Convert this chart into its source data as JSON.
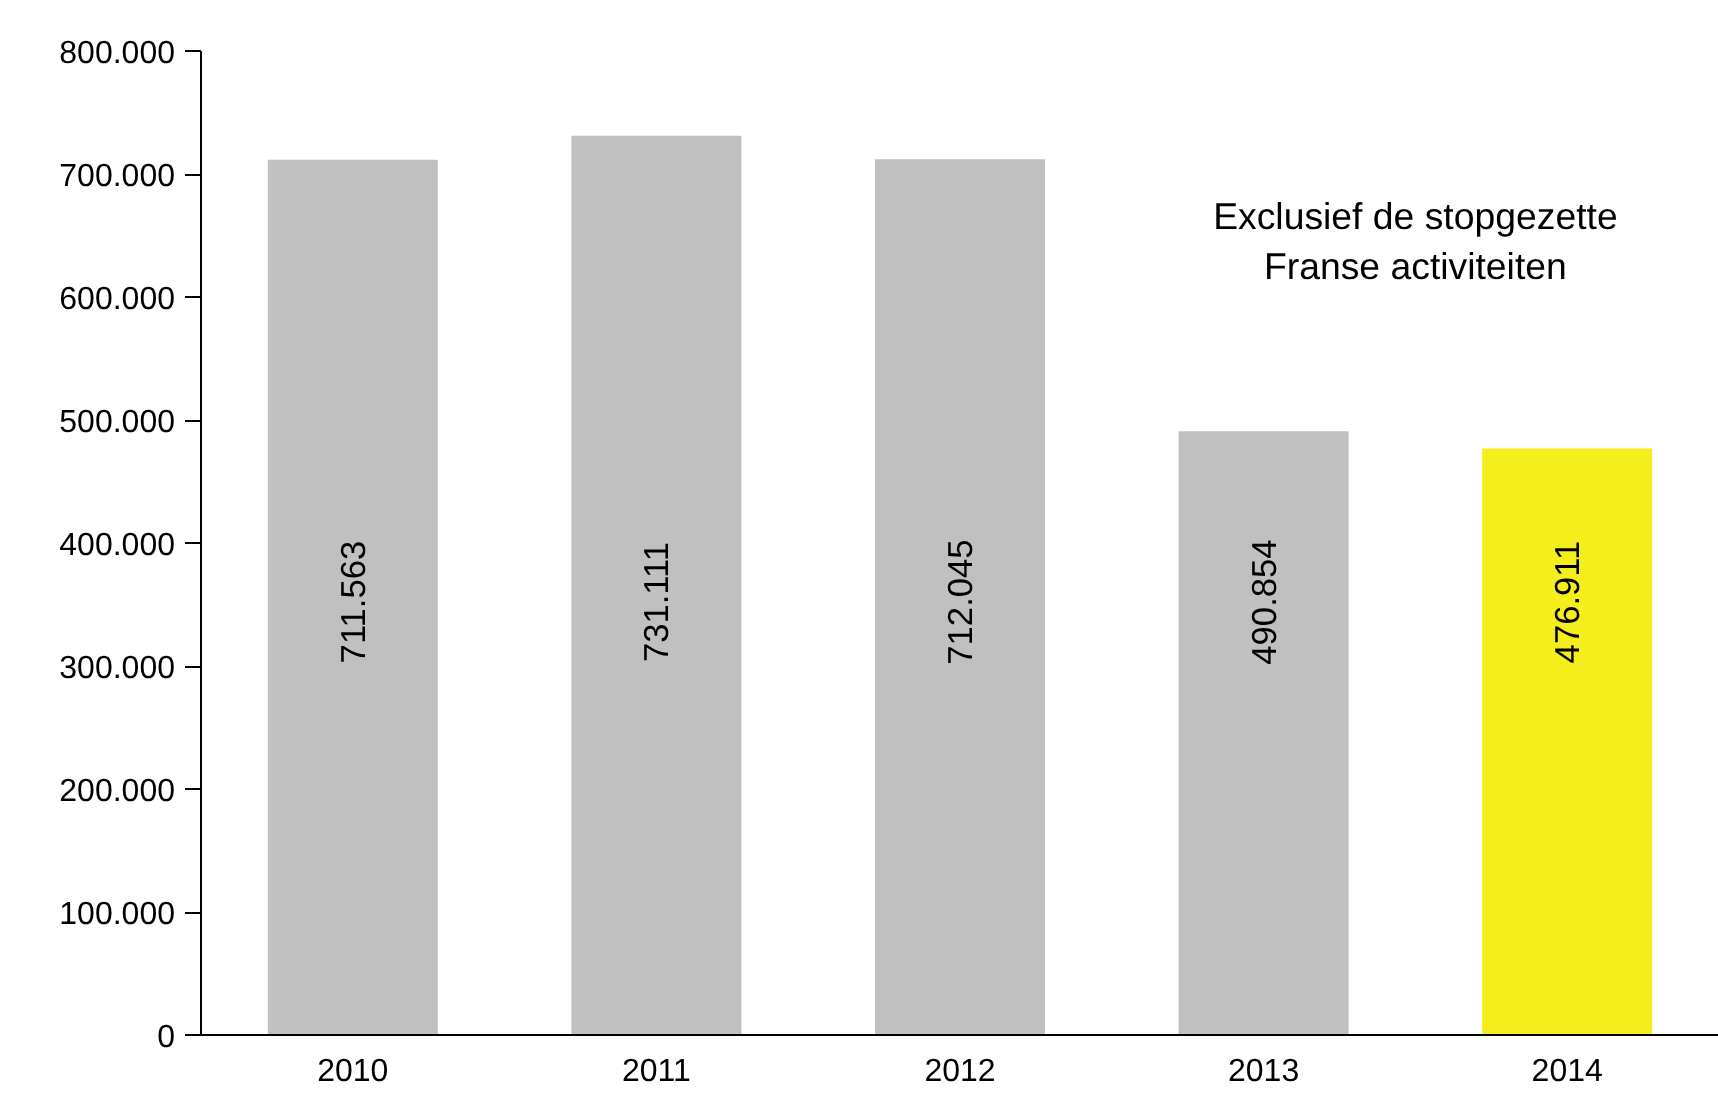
{
  "chart_data": {
    "type": "bar",
    "categories": [
      "2010",
      "2011",
      "2012",
      "2013",
      "2014"
    ],
    "values": [
      711563,
      731111,
      712045,
      490854,
      476911
    ],
    "colors": [
      "#c0c0c0",
      "#c0c0c0",
      "#c0c0c0",
      "#c0c0c0",
      "#f3ee1c"
    ],
    "value_labels": [
      "711.563",
      "731.111",
      "712.045",
      "490.854",
      "476.911"
    ],
    "ylim": [
      0,
      800000
    ],
    "yticks": [
      0,
      {
        "value": 100000,
        "label": "100.000"
      },
      {
        "value": 200000,
        "label": "200.000"
      },
      {
        "value": 300000,
        "label": "300.000"
      },
      {
        "value": 400000,
        "label": "400.000"
      },
      {
        "value": 500000,
        "label": "500.000"
      },
      {
        "value": 600000,
        "label": "600.000"
      },
      {
        "value": 700000,
        "label": "700.000"
      },
      {
        "value": 800000,
        "label": "800.000"
      }
    ],
    "annotations": [
      "Exclusief de stopgezette\nFranse activiteiten"
    ],
    "grid": false
  }
}
